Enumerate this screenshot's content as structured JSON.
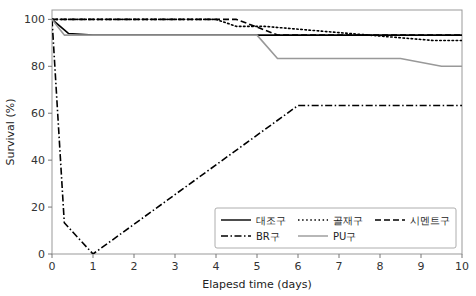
{
  "chart_data": {
    "type": "line",
    "xlabel": "Elapesd time (days)",
    "ylabel": "Survival (%)",
    "xlim": [
      0,
      10
    ],
    "ylim": [
      0.0,
      104
    ],
    "xticks": [
      0,
      1,
      2,
      3,
      4,
      5,
      6,
      7,
      8,
      9,
      10
    ],
    "yticks": [
      0,
      20,
      40,
      60,
      80,
      100
    ],
    "grid": false,
    "legend": "lower right",
    "series": [
      {
        "name": "대조구",
        "color": "#000000",
        "line_style": "solid",
        "x": [
          0,
          0.4,
          1.0,
          10
        ],
        "values": [
          100,
          94.0,
          93.3,
          93.3
        ]
      },
      {
        "name": "골재구",
        "color": "#000000",
        "line_style": "dotted",
        "x": [
          0,
          4.0,
          4.5,
          5.2,
          9.3,
          10
        ],
        "values": [
          100,
          100,
          97.0,
          97.0,
          91.0,
          91.0
        ]
      },
      {
        "name": "시멘트구",
        "color": "#000000",
        "line_style": "dashed",
        "x": [
          0,
          4.5,
          5.0,
          5.5,
          10
        ],
        "values": [
          100,
          100,
          96.7,
          93.3,
          93.3
        ]
      },
      {
        "name": "BR구",
        "color": "#000000",
        "line_style": "dashdot",
        "x": [
          0,
          0.3,
          1.0,
          6.0,
          10
        ],
        "values": [
          100,
          13.3,
          0.0,
          63.3,
          63.3
        ]
      },
      {
        "name": "PU구",
        "color": "#999999",
        "line_style": "solid",
        "x": [
          0,
          0.3,
          5.0,
          5.5,
          8.5,
          9.5,
          10
        ],
        "values": [
          100,
          93.3,
          93.3,
          83.3,
          83.3,
          80.0,
          80.0
        ]
      }
    ]
  }
}
